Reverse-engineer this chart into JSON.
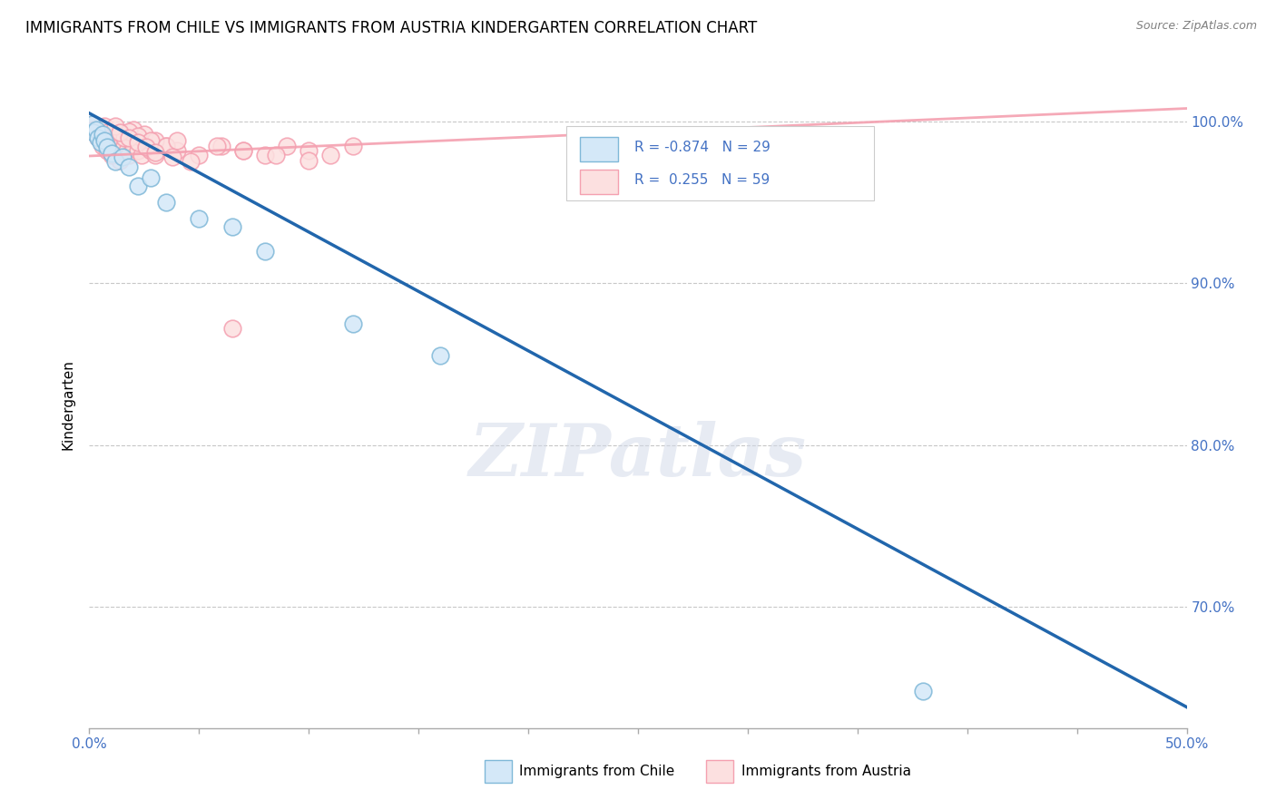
{
  "title": "IMMIGRANTS FROM CHILE VS IMMIGRANTS FROM AUSTRIA KINDERGARTEN CORRELATION CHART",
  "source": "Source: ZipAtlas.com",
  "ylabel": "Kindergarten",
  "ylabel_right_ticks": [
    "100.0%",
    "90.0%",
    "80.0%",
    "70.0%"
  ],
  "ylabel_right_vals": [
    1.0,
    0.9,
    0.8,
    0.7
  ],
  "xlim": [
    0.0,
    0.5
  ],
  "ylim": [
    0.625,
    1.025
  ],
  "chile_color": "#92c5de",
  "chile_edge_color": "#4393c3",
  "austria_color": "#f4a582",
  "austria_edge_color": "#d6604d",
  "chile_line_color": "#2166ac",
  "austria_line_color": "#f4a582",
  "chile_R": -0.874,
  "chile_N": 29,
  "austria_R": 0.255,
  "austria_N": 59,
  "watermark": "ZIPatlas",
  "background_color": "#ffffff",
  "grid_color": "#c8c8c8",
  "chile_scatter_x": [
    0.001,
    0.002,
    0.003,
    0.004,
    0.005,
    0.006,
    0.007,
    0.008,
    0.01,
    0.012,
    0.015,
    0.018,
    0.022,
    0.028,
    0.035,
    0.05,
    0.065,
    0.08,
    0.12,
    0.16,
    0.38
  ],
  "chile_scatter_y": [
    0.998,
    0.993,
    0.995,
    0.99,
    0.987,
    0.992,
    0.988,
    0.984,
    0.98,
    0.975,
    0.978,
    0.972,
    0.96,
    0.965,
    0.95,
    0.94,
    0.935,
    0.92,
    0.875,
    0.855,
    0.648
  ],
  "austria_scatter_x": [
    0.001,
    0.002,
    0.003,
    0.004,
    0.005,
    0.006,
    0.007,
    0.008,
    0.009,
    0.01,
    0.011,
    0.012,
    0.013,
    0.014,
    0.015,
    0.016,
    0.017,
    0.018,
    0.019,
    0.02,
    0.022,
    0.024,
    0.026,
    0.028,
    0.03,
    0.035,
    0.04,
    0.05,
    0.06,
    0.07,
    0.08,
    0.09,
    0.1,
    0.11,
    0.12,
    0.014,
    0.016,
    0.02,
    0.025,
    0.03,
    0.012,
    0.018,
    0.022,
    0.028,
    0.035,
    0.008,
    0.01,
    0.014,
    0.018,
    0.022,
    0.026,
    0.03,
    0.038,
    0.046,
    0.058,
    0.07,
    0.085,
    0.1,
    0.04,
    0.065
  ],
  "austria_scatter_y": [
    0.998,
    0.995,
    0.992,
    0.99,
    0.988,
    0.985,
    0.997,
    0.993,
    0.99,
    0.988,
    0.985,
    0.982,
    0.979,
    0.976,
    0.988,
    0.985,
    0.982,
    0.979,
    0.988,
    0.985,
    0.982,
    0.979,
    0.985,
    0.982,
    0.979,
    0.985,
    0.982,
    0.979,
    0.985,
    0.982,
    0.979,
    0.985,
    0.982,
    0.979,
    0.985,
    0.993,
    0.99,
    0.995,
    0.992,
    0.988,
    0.997,
    0.994,
    0.991,
    0.988,
    0.985,
    0.982,
    0.979,
    0.993,
    0.99,
    0.987,
    0.984,
    0.981,
    0.978,
    0.975,
    0.985,
    0.982,
    0.979,
    0.976,
    0.988,
    0.872
  ],
  "chile_line_x": [
    0.0,
    0.5
  ],
  "chile_line_y": [
    1.005,
    0.638
  ],
  "austria_line_x": [
    -0.01,
    0.5
  ],
  "austria_line_y": [
    0.978,
    1.008
  ]
}
